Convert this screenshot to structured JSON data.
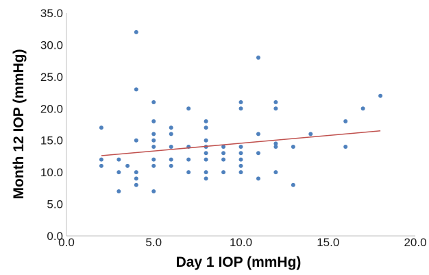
{
  "colors": {
    "point": "#4f81bd",
    "trendline": "#c0504d",
    "axis": "#bfbfbf"
  },
  "chart_data": {
    "type": "scatter",
    "xlabel": "Day 1 IOP (mmHg)",
    "ylabel": "Month 12 IOP (mmHg)",
    "xlim": [
      0,
      20
    ],
    "ylim": [
      0,
      35
    ],
    "x_ticks": [
      "0.0",
      "5.0",
      "10.0",
      "15.0",
      "20.0"
    ],
    "y_ticks": [
      "0.0",
      "5.0",
      "10.0",
      "15.0",
      "20.0",
      "25.0",
      "30.0",
      "35.0"
    ],
    "x_tick_values": [
      0,
      5,
      10,
      15,
      20
    ],
    "y_tick_values": [
      0,
      5,
      10,
      15,
      20,
      25,
      30,
      35
    ],
    "grid": false,
    "legend": "none",
    "trendline": {
      "type": "linear",
      "x": [
        2,
        18
      ],
      "y": [
        12.6,
        16.5
      ]
    },
    "points": [
      [
        2,
        17
      ],
      [
        2,
        12
      ],
      [
        2,
        11
      ],
      [
        3,
        12
      ],
      [
        3,
        10
      ],
      [
        3,
        7
      ],
      [
        3.5,
        11
      ],
      [
        4,
        32
      ],
      [
        4,
        23
      ],
      [
        4,
        15
      ],
      [
        4,
        10
      ],
      [
        4,
        9
      ],
      [
        4,
        8
      ],
      [
        5,
        21
      ],
      [
        5,
        18
      ],
      [
        5,
        16
      ],
      [
        5,
        15
      ],
      [
        5,
        14
      ],
      [
        5,
        12
      ],
      [
        5,
        11
      ],
      [
        5,
        7
      ],
      [
        6,
        17
      ],
      [
        6,
        16
      ],
      [
        6,
        14
      ],
      [
        6,
        12
      ],
      [
        6,
        11
      ],
      [
        7,
        20
      ],
      [
        7,
        14
      ],
      [
        7,
        12
      ],
      [
        7,
        10
      ],
      [
        8,
        18
      ],
      [
        8,
        17
      ],
      [
        8,
        15
      ],
      [
        8,
        14
      ],
      [
        8,
        13
      ],
      [
        8,
        12
      ],
      [
        8,
        10
      ],
      [
        8,
        9
      ],
      [
        9,
        14
      ],
      [
        9,
        13
      ],
      [
        9,
        12
      ],
      [
        9,
        10
      ],
      [
        10,
        21
      ],
      [
        10,
        20
      ],
      [
        10,
        14
      ],
      [
        10,
        13
      ],
      [
        10,
        12
      ],
      [
        10,
        11
      ],
      [
        10,
        10
      ],
      [
        11,
        28
      ],
      [
        11,
        16
      ],
      [
        11,
        13
      ],
      [
        11,
        9
      ],
      [
        12,
        21
      ],
      [
        12,
        20
      ],
      [
        12,
        14.5
      ],
      [
        12,
        14
      ],
      [
        12,
        10
      ],
      [
        13,
        14
      ],
      [
        13,
        8
      ],
      [
        14,
        16
      ],
      [
        16,
        18
      ],
      [
        16,
        14
      ],
      [
        17,
        20
      ],
      [
        18,
        22
      ]
    ]
  }
}
